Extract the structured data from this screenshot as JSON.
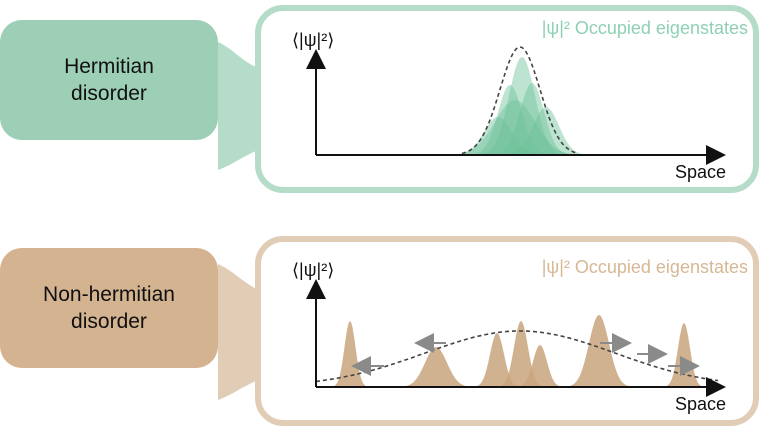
{
  "panels": [
    {
      "id": "hermitian",
      "label": "Hermitian\ndisorder",
      "y_axis_label": "⟨|ψ|²⟩",
      "x_axis_label": "Space",
      "legend": "|ψ|² Occupied eigenstates",
      "colors": {
        "label_bg": "#9ccfb6",
        "frame": "#b5dcc9",
        "fill": "#6cc29a",
        "legend": "#8fd0b3"
      }
    },
    {
      "id": "non-hermitian",
      "label": "Non-hermitian\ndisorder",
      "y_axis_label": "⟨|ψ|²⟩",
      "x_axis_label": "Space",
      "legend": "|ψ|² Occupied eigenstates",
      "colors": {
        "label_bg": "#d4b391",
        "frame": "#e1cdb6",
        "fill": "#c9a57d",
        "legend": "#d7b894"
      }
    }
  ]
}
